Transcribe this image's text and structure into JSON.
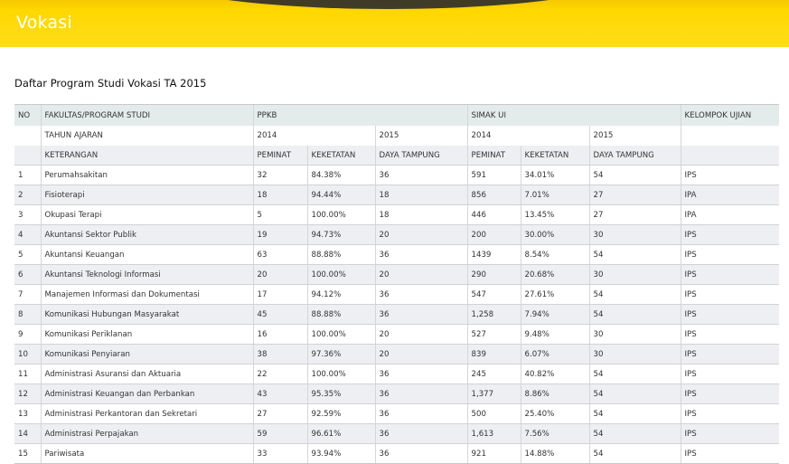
{
  "banner": {
    "title": "Vokasi"
  },
  "subtitle": "Daftar Program Studi Vokasi TA 2015",
  "header1": {
    "no": "NO",
    "fakultas": "FAKULTAS/PROGRAM STUDI",
    "ppkb": "PPKB",
    "simak": "SIMAK UI",
    "kelompok": "KELOMPOK UJIAN"
  },
  "header2": {
    "tahun": "TAHUN AJARAN",
    "ppkb_2014": "2014",
    "ppkb_2015": "2015",
    "simak_2014": "2014",
    "simak_2015": "2015"
  },
  "header3": {
    "keterangan": "KETERANGAN",
    "peminat": "PEMINAT",
    "keketatan": "KEKETATAN",
    "daya": "DAYA TAMPUNG"
  },
  "rows": [
    [
      "1",
      "Perumahsakitan",
      "32",
      "84.38%",
      "36",
      "591",
      "34.01%",
      "54",
      "IPS"
    ],
    [
      "2",
      "Fisioterapi",
      "18",
      "94.44%",
      "18",
      "856",
      "7.01%",
      "27",
      "IPA"
    ],
    [
      "3",
      "Okupasi Terapi",
      "5",
      "100.00%",
      "18",
      "446",
      "13.45%",
      "27",
      "IPA"
    ],
    [
      "4",
      "Akuntansi Sektor Publik",
      "19",
      "94.73%",
      "20",
      "200",
      "30.00%",
      "30",
      "IPS"
    ],
    [
      "5",
      "Akuntansi Keuangan",
      "63",
      "88.88%",
      "36",
      "1439",
      "8.54%",
      "54",
      "IPS"
    ],
    [
      "6",
      "Akuntansi Teknologi Informasi",
      "20",
      "100.00%",
      "20",
      "290",
      "20.68%",
      "30",
      "IPS"
    ],
    [
      "7",
      "Manajemen Informasi dan Dokumentasi",
      "17",
      "94.12%",
      "36",
      "547",
      "27.61%",
      "54",
      "IPS"
    ],
    [
      "8",
      "Komunikasi Hubungan Masyarakat",
      "45",
      "88.88%",
      "36",
      "1,258",
      "7.94%",
      "54",
      "IPS"
    ],
    [
      "9",
      "Komunikasi Periklanan",
      "16",
      "100.00%",
      "20",
      "527",
      "9.48%",
      "30",
      "IPS"
    ],
    [
      "10",
      "Komunikasi Penyiaran",
      "38",
      "97.36%",
      "20",
      "839",
      "6.07%",
      "30",
      "IPS"
    ],
    [
      "11",
      "Administrasi Asuransi dan Aktuaria",
      "22",
      "100.00%",
      "36",
      "245",
      "40.82%",
      "54",
      "IPS"
    ],
    [
      "12",
      "Administrasi Keuangan dan Perbankan",
      "43",
      "95.35%",
      "36",
      "1,377",
      "8.86%",
      "54",
      "IPS"
    ],
    [
      "13",
      "Administrasi Perkantoran dan Sekretari",
      "27",
      "92.59%",
      "36",
      "500",
      "25.40%",
      "54",
      "IPS"
    ],
    [
      "14",
      "Administrasi Perpajakan",
      "59",
      "96.61%",
      "36",
      "1,613",
      "7.56%",
      "54",
      "IPS"
    ],
    [
      "15",
      "Pariwisata",
      "33",
      "93.94%",
      "36",
      "921",
      "14.88%",
      "54",
      "IPS"
    ]
  ]
}
